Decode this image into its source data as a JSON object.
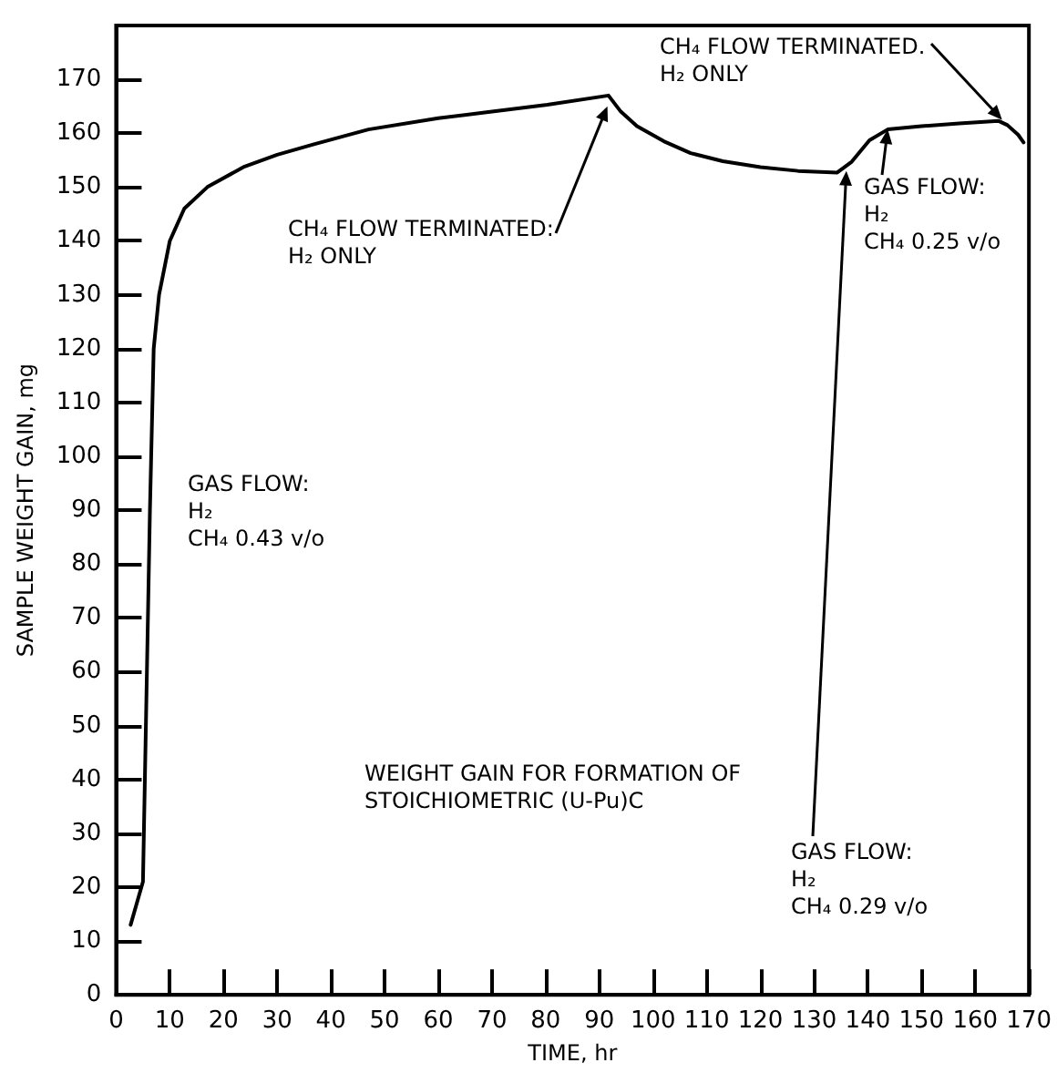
{
  "chart_data": {
    "type": "line",
    "xlabel": "TIME, hr",
    "ylabel": "SAMPLE WEIGHT GAIN, mg",
    "x": [
      2.7,
      5,
      6.3,
      7,
      8,
      10,
      12.7,
      17,
      23.7,
      30,
      37,
      47,
      60,
      70,
      80.3,
      91.7,
      94,
      97,
      102,
      107,
      113,
      120,
      127,
      134.3,
      137,
      140.3,
      143.7,
      150,
      157,
      164.3,
      166,
      168,
      169
    ],
    "series": [
      {
        "color": "#000000",
        "values": [
          13,
          21,
          90,
          120,
          130,
          140,
          146,
          150,
          153.7,
          156,
          158,
          160.7,
          162.8,
          164,
          165.3,
          167,
          164,
          161.3,
          158.5,
          156.3,
          154.8,
          153.7,
          153,
          152.7,
          154.7,
          158.7,
          160.7,
          161.3,
          161.8,
          162.3,
          161.5,
          159.7,
          158.3
        ]
      }
    ],
    "xlim": [
      0,
      170
    ],
    "xticks": [
      0,
      10,
      20,
      30,
      40,
      50,
      60,
      70,
      80,
      90,
      100,
      110,
      120,
      130,
      140,
      150,
      160,
      170
    ],
    "ylim": [
      0,
      180
    ],
    "yticks": [
      0,
      10,
      20,
      30,
      40,
      50,
      60,
      70,
      80,
      90,
      100,
      110,
      120,
      130,
      140,
      150,
      160,
      170
    ],
    "grid": false,
    "marker": "none",
    "line_style": "solid",
    "annotations": [
      {
        "text": "CH₄ FLOW TERMINATED:\nH₂ ONLY",
        "x": 91.5,
        "y": 165
      },
      {
        "text": "GAS FLOW:\nH₂\nCH₄ 0.29 v/o",
        "x": 136,
        "y": 153
      },
      {
        "text": "GAS FLOW:\nH₂\nCH₄ 0.25 v/o",
        "x": 143.7,
        "y": 160.7
      },
      {
        "text": "CH₄ FLOW TERMINATED.\nH₂ ONLY",
        "x": 165,
        "y": 162.5
      },
      "GAS FLOW:\nH₂\nCH₄ 0.43 v/o",
      "WEIGHT GAIN FOR FORMATION OF\nSTOICHIOMETRIC (U-Pu)C"
    ]
  }
}
